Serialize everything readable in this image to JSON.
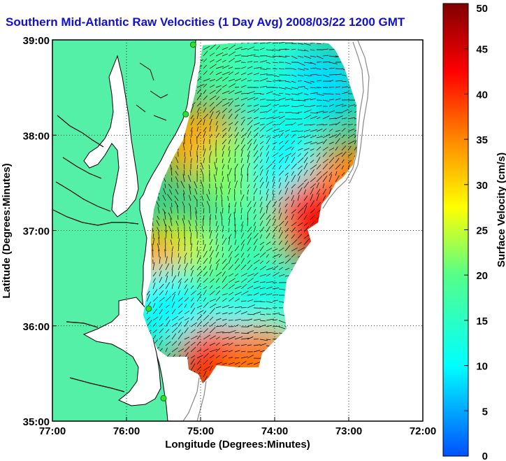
{
  "chart_data": {
    "type": "heatmap",
    "title": "Southern Mid-Atlantic Raw Velocities (1 Day Avg) 2008/03/22 1200 GMT",
    "xlabel": "Longitude (Degrees:Minutes)",
    "ylabel": "Latitude (Degrees:Minutes)",
    "x_ticks": [
      "77:00",
      "76:00",
      "75:00",
      "74:00",
      "73:00",
      "72:00"
    ],
    "x_tick_values": [
      -77,
      -76,
      -75,
      -74,
      -73,
      -72
    ],
    "y_ticks": [
      "39:00",
      "38:00",
      "37:00",
      "36:00",
      "35:00"
    ],
    "y_tick_values": [
      39,
      38,
      37,
      36,
      35
    ],
    "xlim": [
      -77,
      -72
    ],
    "ylim": [
      35,
      39
    ],
    "grid": true,
    "colorbar": {
      "label": "Surface Velocity (cm/s)",
      "ticks": [
        "50",
        "45",
        "40",
        "35",
        "30",
        "25",
        "20",
        "15",
        "10",
        "5",
        "0"
      ],
      "tick_values": [
        50,
        45,
        40,
        35,
        30,
        25,
        20,
        15,
        10,
        5,
        0
      ],
      "range": [
        0,
        50
      ],
      "colormap": "jet"
    },
    "velocity_field": [
      {
        "lon": -74.6,
        "lat": 38.8,
        "speed": 18
      },
      {
        "lon": -74.0,
        "lat": 38.8,
        "speed": 15
      },
      {
        "lon": -73.4,
        "lat": 38.5,
        "speed": 8
      },
      {
        "lon": -73.9,
        "lat": 38.2,
        "speed": 12
      },
      {
        "lon": -75.0,
        "lat": 37.9,
        "speed": 33
      },
      {
        "lon": -74.5,
        "lat": 37.6,
        "speed": 22
      },
      {
        "lon": -73.8,
        "lat": 37.6,
        "speed": 10
      },
      {
        "lon": -73.0,
        "lat": 37.5,
        "speed": 35
      },
      {
        "lon": -73.5,
        "lat": 37.1,
        "speed": 42
      },
      {
        "lon": -74.4,
        "lat": 36.9,
        "speed": 17
      },
      {
        "lon": -75.3,
        "lat": 36.7,
        "speed": 25
      },
      {
        "lon": -75.7,
        "lat": 36.6,
        "speed": 33
      },
      {
        "lon": -74.9,
        "lat": 36.3,
        "speed": 19
      },
      {
        "lon": -74.0,
        "lat": 36.2,
        "speed": 12
      },
      {
        "lon": -75.5,
        "lat": 36.2,
        "speed": 10
      },
      {
        "lon": -74.6,
        "lat": 35.9,
        "speed": 10
      },
      {
        "lon": -73.9,
        "lat": 35.8,
        "speed": 14
      },
      {
        "lon": -74.8,
        "lat": 35.6,
        "speed": 40
      },
      {
        "lon": -74.2,
        "lat": 35.6,
        "speed": 36
      }
    ],
    "stations": [
      {
        "lon": -75.1,
        "lat": 38.95
      },
      {
        "lon": -75.2,
        "lat": 38.22
      },
      {
        "lon": -75.7,
        "lat": 36.18
      },
      {
        "lon": -75.5,
        "lat": 35.24
      }
    ]
  },
  "colors": {
    "title": "#1010d0",
    "land": "#55f0a8",
    "water": "#ffffff",
    "coastline": "#000000",
    "station": "#33dd33",
    "bathymetry": "#888888"
  }
}
